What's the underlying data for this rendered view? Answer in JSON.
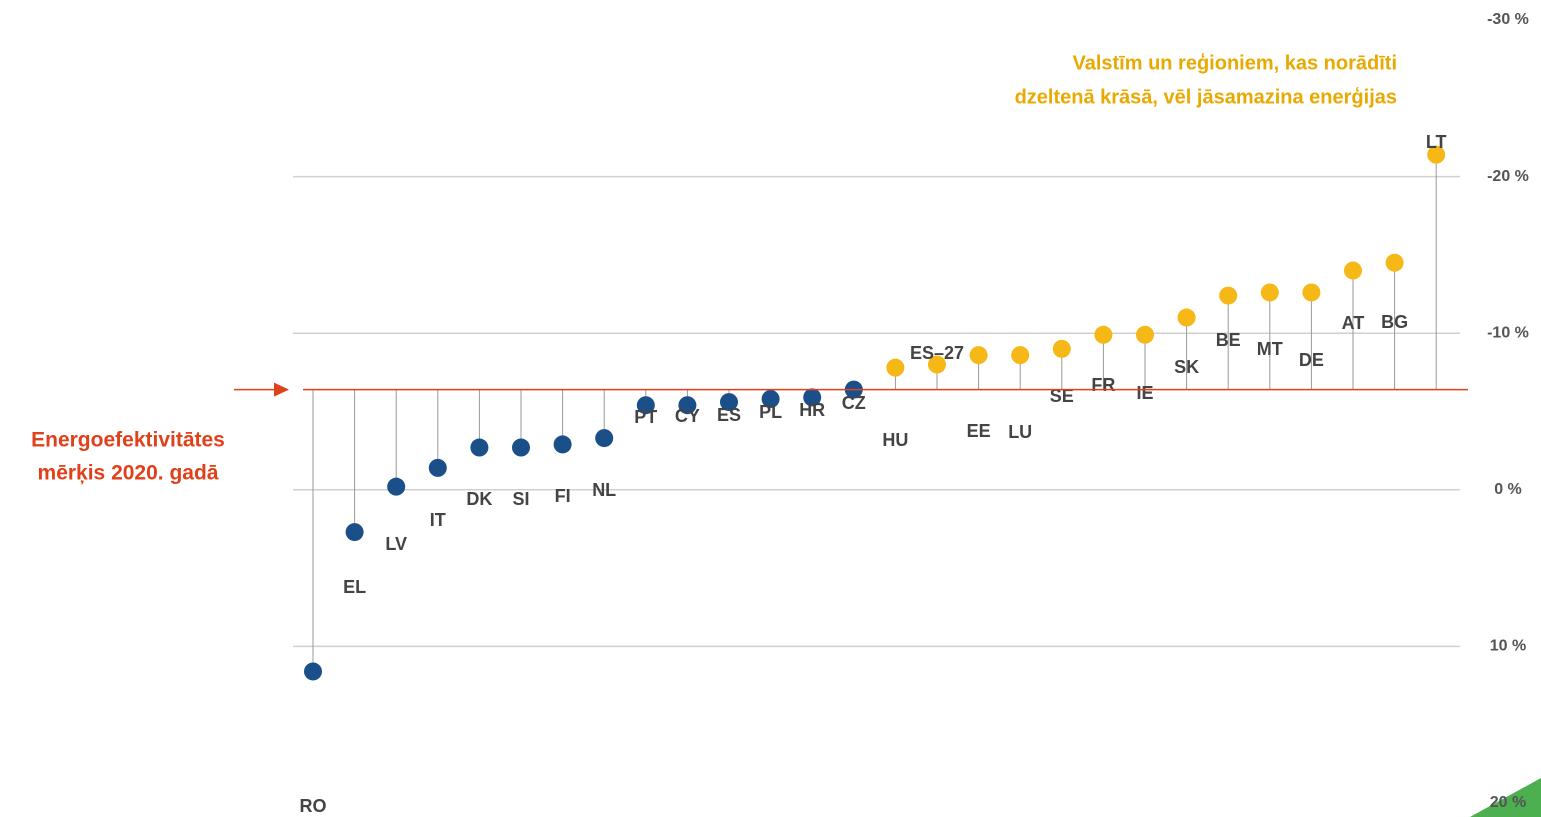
{
  "chart_data": {
    "type": "lollipop",
    "annotation": [
      "Valstīm un reģioniem, kas norādīti",
      "dzeltenā krāsā, vēl jāsamazina enerģijas"
    ],
    "target_label": [
      "Energoefektivitātes",
      "mērķis 2020. gadā"
    ],
    "target": -6.4,
    "target_color": "#e0401a",
    "categories": [
      "RO",
      "EL",
      "LV",
      "IT",
      "DK",
      "SI",
      "FI",
      "NL",
      "PT",
      "CY",
      "ES",
      "PL",
      "HR",
      "CZ",
      "HU",
      "ES–27",
      "EE",
      "LU",
      "SE",
      "FR",
      "IE",
      "SK",
      "BE",
      "MT",
      "DE",
      "AT",
      "BG",
      "LT"
    ],
    "values": [
      11.6,
      2.7,
      -0.2,
      -1.4,
      -2.7,
      -2.7,
      -2.9,
      -3.3,
      -5.4,
      -5.4,
      -5.6,
      -5.8,
      -5.9,
      -6.4,
      -7.8,
      -8.0,
      -8.6,
      -8.6,
      -9.0,
      -9.9,
      -9.9,
      -11.0,
      -12.4,
      -12.6,
      -12.6,
      -14.0,
      -14.5,
      -21.4
    ],
    "colors": [
      "#1b4f8a",
      "#1b4f8a",
      "#1b4f8a",
      "#1b4f8a",
      "#1b4f8a",
      "#1b4f8a",
      "#1b4f8a",
      "#1b4f8a",
      "#1b4f8a",
      "#1b4f8a",
      "#1b4f8a",
      "#1b4f8a",
      "#1b4f8a",
      "#1b4f8a",
      "#f6b817",
      "#f6b817",
      "#f6b817",
      "#f6b817",
      "#f6b817",
      "#f6b817",
      "#f6b817",
      "#f6b817",
      "#f6b817",
      "#f6b817",
      "#f6b817",
      "#f6b817",
      "#f6b817",
      "#f6b817"
    ],
    "ylim": [
      -30,
      20
    ],
    "yticks": [
      {
        "value": -30,
        "label": "-30 %"
      },
      {
        "value": -20,
        "label": "-20 %"
      },
      {
        "value": -10,
        "label": "-10 %"
      },
      {
        "value": 0,
        "label": "0 %"
      },
      {
        "value": 10,
        "label": "10 %"
      },
      {
        "value": 20,
        "label": "20 %"
      }
    ],
    "grid": true
  }
}
